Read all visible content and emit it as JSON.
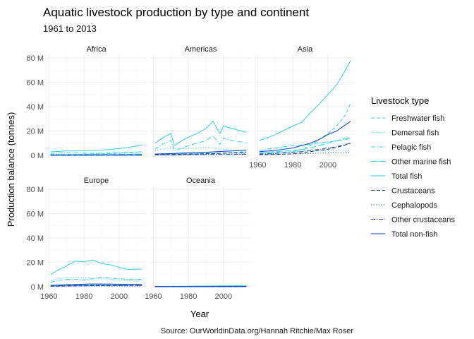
{
  "chart_data": {
    "type": "line",
    "title": "Aquatic livestock production by type and continent",
    "subtitle": "1961 to 2013",
    "xlabel": "Year",
    "ylabel": "Production balance (tonnes)",
    "caption": "Source: OurWorldinData.org/Hannah Ritchie/Max Roser",
    "legend_title": "Livestock type",
    "legend_position": "right",
    "grid": true,
    "xlim": [
      1961,
      2013
    ],
    "ylim": [
      0,
      80000000
    ],
    "x_ticks": [
      1960,
      1980,
      2000
    ],
    "x_tick_labels": [
      "1960",
      "1980",
      "2000"
    ],
    "y_ticks": [
      0,
      20000000,
      40000000,
      60000000,
      80000000
    ],
    "y_tick_labels": [
      "0 M",
      "20 M",
      "40 M",
      "60 M",
      "80 M"
    ],
    "series_styles": [
      {
        "name": "Freshwater fish",
        "color": "#2ad1e6",
        "dash": "5,3"
      },
      {
        "name": "Demersal fish",
        "color": "#2ad1e6",
        "dash": "1.2,2.4"
      },
      {
        "name": "Pelagic fish",
        "color": "#2ad1e6",
        "dash": "6,2,1.2,2"
      },
      {
        "name": "Other marine fish",
        "color": "#2ad1e6",
        "dash": "9,3"
      },
      {
        "name": "Total fish",
        "color": "#2ad1e6",
        "dash": ""
      },
      {
        "name": "Crustaceans",
        "color": "#1a3a6b",
        "dash": "5,3"
      },
      {
        "name": "Cephalopods",
        "color": "#2a4fb0",
        "dash": "1.2,2.4"
      },
      {
        "name": "Other crustaceans",
        "color": "#2a4fb0",
        "dash": "6,2,1.2,2"
      },
      {
        "name": "Total non-fish",
        "color": "#0a3fcc",
        "dash": ""
      }
    ],
    "panels": [
      {
        "name": "Africa",
        "x": [
          1961,
          1970,
          1980,
          1990,
          2000,
          2005,
          2013
        ],
        "series": [
          {
            "name": "Freshwater fish",
            "values": [
              500000,
              700000,
              900000,
              1200000,
              1700000,
              2100000,
              2800000
            ]
          },
          {
            "name": "Demersal fish",
            "values": [
              800000,
              900000,
              900000,
              900000,
              1000000,
              1100000,
              1200000
            ]
          },
          {
            "name": "Pelagic fish",
            "values": [
              1500000,
              2000000,
              1800000,
              1700000,
              2100000,
              2500000,
              2900000
            ]
          },
          {
            "name": "Other marine fish",
            "values": [
              300000,
              400000,
              500000,
              600000,
              700000,
              800000,
              900000
            ]
          },
          {
            "name": "Total fish",
            "values": [
              2800000,
              3600000,
              3700000,
              4200000,
              5500000,
              6500000,
              8200000
            ]
          },
          {
            "name": "Crustaceans",
            "values": [
              50000,
              70000,
              80000,
              100000,
              130000,
              150000,
              180000
            ]
          },
          {
            "name": "Cephalopods",
            "values": [
              30000,
              50000,
              80000,
              100000,
              100000,
              100000,
              120000
            ]
          },
          {
            "name": "Other crustaceans",
            "values": [
              20000,
              30000,
              40000,
              50000,
              60000,
              70000,
              80000
            ]
          },
          {
            "name": "Total non-fish",
            "values": [
              100000,
              150000,
              200000,
              250000,
              300000,
              320000,
              380000
            ]
          }
        ]
      },
      {
        "name": "Americas",
        "x": [
          1961,
          1965,
          1970,
          1972,
          1975,
          1980,
          1985,
          1990,
          1994,
          1998,
          2000,
          2005,
          2010,
          2013
        ],
        "series": [
          {
            "name": "Freshwater fish",
            "values": [
              500000,
              600000,
              700000,
              700000,
              800000,
              900000,
              1000000,
              1200000,
              1400000,
              1600000,
              1800000,
              2200000,
              2800000,
              3000000
            ]
          },
          {
            "name": "Demersal fish",
            "values": [
              4000000,
              5000000,
              6000000,
              6000000,
              5500000,
              5500000,
              6000000,
              6500000,
              6000000,
              5000000,
              5000000,
              4500000,
              4000000,
              3800000
            ]
          },
          {
            "name": "Pelagic fish",
            "values": [
              5000000,
              9000000,
              12000000,
              4000000,
              5000000,
              8000000,
              10000000,
              12000000,
              16000000,
              9000000,
              14000000,
              12000000,
              11000000,
              10000000
            ]
          },
          {
            "name": "Other marine fish",
            "values": [
              1000000,
              1100000,
              1200000,
              1200000,
              1300000,
              1500000,
              1600000,
              1700000,
              1800000,
              1800000,
              1900000,
              2000000,
              2100000,
              2200000
            ]
          },
          {
            "name": "Total fish",
            "values": [
              10000000,
              14000000,
              18000000,
              8000000,
              11000000,
              15000000,
              18000000,
              22000000,
              28000000,
              18000000,
              24000000,
              22000000,
              20000000,
              19000000
            ]
          },
          {
            "name": "Crustaceans",
            "values": [
              500000,
              600000,
              700000,
              750000,
              800000,
              900000,
              1000000,
              1200000,
              1400000,
              1600000,
              1700000,
              2000000,
              2300000,
              2500000
            ]
          },
          {
            "name": "Cephalopods",
            "values": [
              200000,
              250000,
              300000,
              300000,
              400000,
              500000,
              600000,
              700000,
              800000,
              900000,
              1000000,
              1000000,
              1100000,
              1200000
            ]
          },
          {
            "name": "Other crustaceans",
            "values": [
              300000,
              350000,
              400000,
              400000,
              450000,
              500000,
              550000,
              600000,
              650000,
              700000,
              700000,
              750000,
              800000,
              800000
            ]
          },
          {
            "name": "Total non-fish",
            "values": [
              1000000,
              1200000,
              1400000,
              1500000,
              1700000,
              2000000,
              2200000,
              2500000,
              2800000,
              3100000,
              3300000,
              3600000,
              4000000,
              4200000
            ]
          }
        ]
      },
      {
        "name": "Asia",
        "x": [
          1961,
          1970,
          1980,
          1985,
          1990,
          1995,
          2000,
          2005,
          2010,
          2013
        ],
        "series": [
          {
            "name": "Freshwater fish",
            "values": [
              1500000,
              2000000,
              3000000,
              5000000,
              8000000,
              13000000,
              18000000,
              24000000,
              33000000,
              43000000
            ]
          },
          {
            "name": "Demersal fish",
            "values": [
              2000000,
              2500000,
              3000000,
              3200000,
              3500000,
              3800000,
              4000000,
              4000000,
              4200000,
              4300000
            ]
          },
          {
            "name": "Pelagic fish",
            "values": [
              4000000,
              6000000,
              8000000,
              8500000,
              9000000,
              10500000,
              11000000,
              12000000,
              13000000,
              14000000
            ]
          },
          {
            "name": "Other marine fish",
            "values": [
              2000000,
              3000000,
              4000000,
              4500000,
              6000000,
              8000000,
              10000000,
              12000000,
              14000000,
              15000000
            ]
          },
          {
            "name": "Total fish",
            "values": [
              12000000,
              17000000,
              24000000,
              27000000,
              35000000,
              42000000,
              50000000,
              58000000,
              70000000,
              78000000
            ]
          },
          {
            "name": "Crustaceans",
            "values": [
              500000,
              800000,
              1200000,
              1800000,
              3000000,
              4000000,
              5000000,
              6500000,
              8500000,
              10000000
            ]
          },
          {
            "name": "Cephalopods",
            "values": [
              500000,
              700000,
              1000000,
              1200000,
              1500000,
              1800000,
              2000000,
              2100000,
              2200000,
              2300000
            ]
          },
          {
            "name": "Other crustaceans",
            "values": [
              1000000,
              1500000,
              2500000,
              3000000,
              4000000,
              5000000,
              6000000,
              7000000,
              9000000,
              10000000
            ]
          },
          {
            "name": "Total non-fish",
            "values": [
              3000000,
              4000000,
              6000000,
              8000000,
              10000000,
              13000000,
              17000000,
              20000000,
              25000000,
              28000000
            ]
          }
        ]
      },
      {
        "name": "Europe",
        "x": [
          1961,
          1965,
          1970,
          1975,
          1980,
          1985,
          1990,
          1995,
          2000,
          2005,
          2013
        ],
        "series": [
          {
            "name": "Freshwater fish",
            "values": [
              1000000,
              1100000,
              1200000,
              1300000,
              1300000,
              1400000,
              1400000,
              1300000,
              1300000,
              1200000,
              1200000
            ]
          },
          {
            "name": "Demersal fish",
            "values": [
              5000000,
              6500000,
              7500000,
              8000000,
              7500000,
              7000000,
              6500000,
              6000000,
              5500000,
              5000000,
              4500000
            ]
          },
          {
            "name": "Pelagic fish",
            "values": [
              3500000,
              5000000,
              6000000,
              6000000,
              5500000,
              6500000,
              8000000,
              7000000,
              6500000,
              6000000,
              6000000
            ]
          },
          {
            "name": "Other marine fish",
            "values": [
              500000,
              600000,
              700000,
              800000,
              800000,
              900000,
              900000,
              900000,
              900000,
              900000,
              900000
            ]
          },
          {
            "name": "Total fish",
            "values": [
              10000000,
              13500000,
              17000000,
              21000000,
              20500000,
              22000000,
              19000000,
              18000000,
              16000000,
              14000000,
              14500000
            ]
          },
          {
            "name": "Crustaceans",
            "values": [
              300000,
              400000,
              500000,
              600000,
              700000,
              800000,
              800000,
              800000,
              900000,
              900000,
              900000
            ]
          },
          {
            "name": "Cephalopods",
            "values": [
              300000,
              350000,
              400000,
              450000,
              500000,
              500000,
              500000,
              450000,
              450000,
              400000,
              400000
            ]
          },
          {
            "name": "Other crustaceans",
            "values": [
              500000,
              700000,
              900000,
              1000000,
              1100000,
              1200000,
              1200000,
              1100000,
              1000000,
              1000000,
              1000000
            ]
          },
          {
            "name": "Total non-fish",
            "values": [
              1000000,
              1300000,
              1600000,
              1800000,
              2000000,
              2200000,
              2200000,
              2100000,
              2000000,
              1900000,
              1800000
            ]
          }
        ]
      },
      {
        "name": "Oceania",
        "x": [
          1961,
          1970,
          1980,
          1990,
          2000,
          2013
        ],
        "series": [
          {
            "name": "Freshwater fish",
            "values": [
              20000,
              30000,
              40000,
              50000,
              60000,
              70000
            ]
          },
          {
            "name": "Demersal fish",
            "values": [
              50000,
              80000,
              120000,
              180000,
              250000,
              300000
            ]
          },
          {
            "name": "Pelagic fish",
            "values": [
              50000,
              80000,
              120000,
              180000,
              250000,
              300000
            ]
          },
          {
            "name": "Other marine fish",
            "values": [
              30000,
              50000,
              70000,
              100000,
              150000,
              200000
            ]
          },
          {
            "name": "Total fish",
            "values": [
              150000,
              250000,
              350000,
              500000,
              700000,
              800000
            ]
          },
          {
            "name": "Crustaceans",
            "values": [
              20000,
              30000,
              40000,
              50000,
              60000,
              70000
            ]
          },
          {
            "name": "Cephalopods",
            "values": [
              5000,
              10000,
              15000,
              20000,
              25000,
              30000
            ]
          },
          {
            "name": "Other crustaceans",
            "values": [
              30000,
              50000,
              70000,
              90000,
              100000,
              120000
            ]
          },
          {
            "name": "Total non-fish",
            "values": [
              50000,
              80000,
              110000,
              150000,
              180000,
              200000
            ]
          }
        ]
      }
    ]
  }
}
